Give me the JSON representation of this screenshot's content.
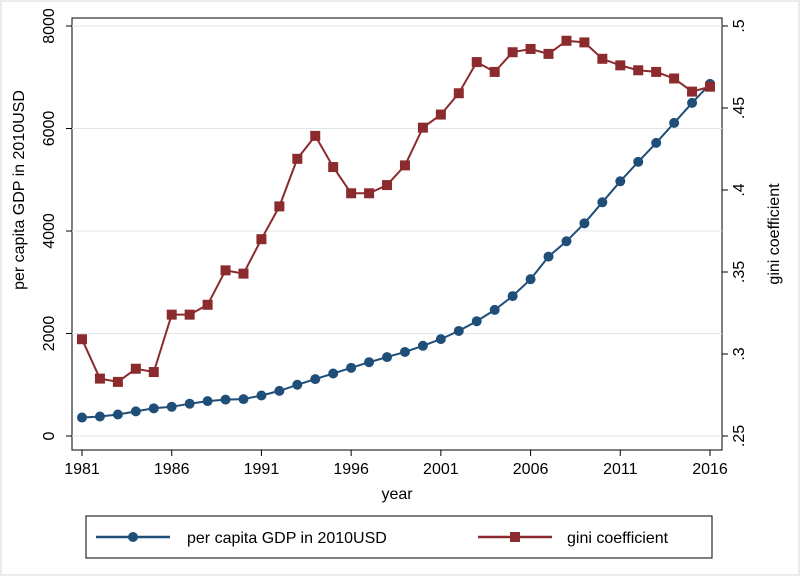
{
  "chart_data": {
    "type": "line",
    "title": "",
    "xlabel": "year",
    "ylabel": "per capita GDP in 2010USD",
    "y2label": "gini coefficient",
    "x_ticks": [
      1981,
      1986,
      1991,
      1996,
      2001,
      2006,
      2011,
      2016
    ],
    "y_ticks": [
      0,
      2000,
      4000,
      6000,
      8000
    ],
    "y2_ticks": [
      ".25",
      ".3",
      ".35",
      ".4",
      ".45",
      ".5"
    ],
    "xlim": [
      1981,
      2016
    ],
    "ylim": [
      0,
      8000
    ],
    "y2lim": [
      0.25,
      0.5
    ],
    "grid": "horizontal",
    "legend_position": "bottom",
    "series": [
      {
        "name": "per capita GDP in 2010USD",
        "axis": "left",
        "color": "#1f4e79",
        "marker": "circle",
        "x": [
          1981,
          1982,
          1983,
          1984,
          1985,
          1986,
          1987,
          1988,
          1989,
          1990,
          1991,
          1992,
          1993,
          1994,
          1995,
          1996,
          1997,
          1998,
          1999,
          2000,
          2001,
          2002,
          2003,
          2004,
          2005,
          2006,
          2007,
          2008,
          2009,
          2010,
          2011,
          2012,
          2013,
          2014,
          2015,
          2016
        ],
        "values": [
          360,
          380,
          420,
          480,
          540,
          570,
          630,
          680,
          710,
          720,
          790,
          880,
          1000,
          1110,
          1220,
          1330,
          1440,
          1540,
          1640,
          1760,
          1890,
          2050,
          2240,
          2460,
          2730,
          3060,
          3500,
          3800,
          4150,
          4560,
          4970,
          5350,
          5720,
          6110,
          6500,
          6870
        ]
      },
      {
        "name": "gini coefficient",
        "axis": "right",
        "color": "#8b2b2e",
        "marker": "square",
        "x": [
          1981,
          1982,
          1983,
          1984,
          1985,
          1986,
          1987,
          1988,
          1989,
          1990,
          1991,
          1992,
          1993,
          1994,
          1995,
          1996,
          1997,
          1998,
          1999,
          2000,
          2001,
          2002,
          2003,
          2004,
          2005,
          2006,
          2007,
          2008,
          2009,
          2010,
          2011,
          2012,
          2013,
          2014,
          2015,
          2016
        ],
        "values": [
          0.309,
          0.285,
          0.283,
          0.291,
          0.289,
          0.324,
          0.324,
          0.33,
          0.351,
          0.349,
          0.37,
          0.39,
          0.419,
          0.433,
          0.414,
          0.398,
          0.398,
          0.403,
          0.415,
          0.438,
          0.446,
          0.459,
          0.478,
          0.472,
          0.484,
          0.486,
          0.483,
          0.491,
          0.49,
          0.48,
          0.476,
          0.473,
          0.472,
          0.468,
          0.46,
          0.463
        ]
      }
    ]
  }
}
